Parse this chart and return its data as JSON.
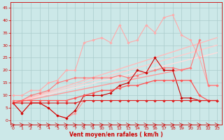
{
  "background_color": "#cce8e8",
  "grid_color": "#aacccc",
  "xlabel": "Vent moyen/en rafales ( km/h )",
  "xlabel_color": "#cc0000",
  "tick_color": "#cc0000",
  "x_ticks": [
    0,
    1,
    2,
    3,
    4,
    5,
    6,
    7,
    8,
    9,
    10,
    11,
    12,
    13,
    14,
    15,
    16,
    17,
    18,
    19,
    20,
    21,
    22,
    23
  ],
  "y_ticks": [
    0,
    5,
    10,
    15,
    20,
    25,
    30,
    35,
    40,
    45
  ],
  "ylim": [
    -1.5,
    47
  ],
  "xlim": [
    -0.3,
    23.5
  ],
  "lines": [
    {
      "x": [
        0,
        1,
        2,
        3,
        4,
        5,
        6,
        7,
        8,
        9,
        10,
        11,
        12,
        13,
        14,
        15,
        16,
        17,
        18,
        19,
        20,
        21,
        22,
        23
      ],
      "y": [
        7,
        3,
        7,
        7,
        5,
        2,
        1,
        3,
        8,
        8,
        8,
        8,
        8,
        8,
        8,
        8,
        8,
        8,
        8,
        8,
        8,
        8,
        8,
        8
      ],
      "color": "#ff9999",
      "marker": "D",
      "markersize": 1.8,
      "linewidth": 0.8,
      "zorder": 3
    },
    {
      "x": [
        0,
        1,
        2,
        3,
        4,
        5,
        6,
        7,
        8,
        9,
        10,
        11,
        12,
        13,
        14,
        15,
        16,
        17,
        18,
        19,
        20,
        21,
        22,
        23
      ],
      "y": [
        7,
        3,
        7,
        7,
        5,
        2,
        1,
        4,
        10,
        10,
        10,
        11,
        14,
        15,
        20,
        19,
        25,
        20,
        20,
        9,
        9,
        8,
        8,
        8
      ],
      "color": "#cc0000",
      "marker": "D",
      "markersize": 1.8,
      "linewidth": 0.8,
      "zorder": 4
    },
    {
      "x": [
        0,
        1,
        2,
        3,
        4,
        5,
        6,
        7,
        8,
        9,
        10,
        11,
        12,
        13,
        14,
        15,
        16,
        17,
        18,
        19,
        20,
        21,
        22,
        23
      ],
      "y": [
        10,
        10,
        12,
        12,
        15,
        16,
        20,
        20,
        31,
        32,
        33,
        31,
        38,
        31,
        32,
        38,
        35,
        41,
        42,
        34,
        32,
        25,
        14,
        14
      ],
      "color": "#ffaaaa",
      "marker": "D",
      "markersize": 1.8,
      "linewidth": 0.8,
      "zorder": 3
    },
    {
      "x": [
        0,
        1,
        2,
        3,
        4,
        5,
        6,
        7,
        8,
        9,
        10,
        11,
        12,
        13,
        14,
        15,
        16,
        17,
        18,
        19,
        20,
        21,
        22,
        23
      ],
      "y": [
        8,
        8,
        10,
        11,
        12,
        15,
        16,
        17,
        17,
        17,
        17,
        17,
        18,
        17,
        18,
        19,
        20,
        21,
        21,
        20,
        21,
        32,
        14,
        14
      ],
      "color": "#ff7777",
      "marker": "D",
      "markersize": 1.8,
      "linewidth": 0.8,
      "zorder": 3
    },
    {
      "x": [
        0,
        23
      ],
      "y": [
        7,
        33
      ],
      "color": "#ffbbbb",
      "marker": null,
      "markersize": 0,
      "linewidth": 1.0,
      "zorder": 2
    },
    {
      "x": [
        0,
        23
      ],
      "y": [
        7,
        30
      ],
      "color": "#ffcccc",
      "marker": null,
      "markersize": 0,
      "linewidth": 1.0,
      "zorder": 2
    },
    {
      "x": [
        0,
        23
      ],
      "y": [
        7,
        27
      ],
      "color": "#ffdddd",
      "marker": null,
      "markersize": 0,
      "linewidth": 1.0,
      "zorder": 2
    },
    {
      "x": [
        0,
        20
      ],
      "y": [
        7,
        21
      ],
      "color": "#ff9999",
      "marker": null,
      "markersize": 0,
      "linewidth": 1.0,
      "zorder": 2
    },
    {
      "x": [
        0,
        1,
        2,
        3,
        4,
        5,
        6,
        7,
        8,
        9,
        10,
        11,
        12,
        13,
        14,
        15,
        16,
        17,
        18,
        19,
        20,
        21,
        22,
        23
      ],
      "y": [
        7,
        8,
        8,
        8,
        8,
        8,
        8,
        9,
        10,
        11,
        12,
        12,
        13,
        14,
        14,
        15,
        16,
        16,
        16,
        16,
        16,
        10,
        8,
        8
      ],
      "color": "#ff5555",
      "marker": "D",
      "markersize": 1.8,
      "linewidth": 0.9,
      "zorder": 4
    },
    {
      "x": [
        0,
        1,
        2,
        3,
        4,
        5,
        6,
        7,
        8,
        9,
        10,
        11,
        12,
        13,
        14,
        15,
        16,
        17,
        18,
        19,
        20,
        21,
        22,
        23
      ],
      "y": [
        7,
        7,
        7,
        7,
        7,
        7,
        7,
        7,
        8,
        8,
        8,
        8,
        8,
        8,
        8,
        8,
        8,
        8,
        8,
        8,
        8,
        8,
        8,
        8
      ],
      "color": "#dd2222",
      "marker": "D",
      "markersize": 1.8,
      "linewidth": 0.8,
      "zorder": 4
    }
  ]
}
